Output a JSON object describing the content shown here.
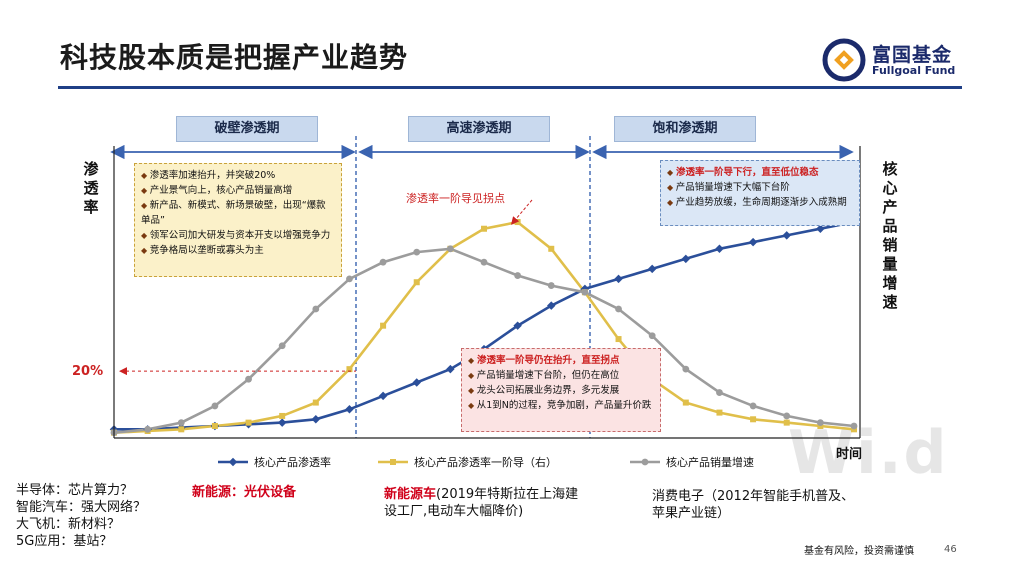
{
  "header": {
    "title": "科技股本质是把握产业趋势"
  },
  "logo": {
    "cn": "富国基金",
    "en": "Fullgoal Fund",
    "color": "#1b2a6b"
  },
  "chart_data": {
    "type": "line",
    "phases": [
      "破壁渗透期",
      "高速渗透期",
      "饱和渗透期"
    ],
    "left_axis_label": "渗透率",
    "right_axis_label": "核心产品销量增速",
    "xlabel": "时间",
    "mark_20": "20%",
    "annotation_inflection": "渗透率一阶导见拐点",
    "x": [
      0,
      1,
      2,
      3,
      4,
      5,
      6,
      7,
      8,
      9,
      10,
      11,
      12,
      13,
      14,
      15,
      16,
      17,
      18,
      19,
      20,
      21,
      22
    ],
    "series": [
      {
        "name": "核心产品渗透率",
        "color": "#2b4f9a",
        "values": [
          2,
          2,
          2.5,
          3,
          3.5,
          4,
          5,
          8,
          12,
          16,
          20,
          26,
          33,
          39,
          44,
          47,
          50,
          53,
          56,
          58,
          60,
          62,
          64
        ]
      },
      {
        "name": "核心产品渗透率一阶导（右）",
        "color": "#e0bf4a",
        "values": [
          1,
          1.5,
          2,
          3,
          4,
          6,
          10,
          20,
          33,
          46,
          56,
          62,
          64,
          56,
          43,
          29,
          17,
          10,
          7,
          5,
          4,
          3,
          2
        ]
      },
      {
        "name": "核心产品销量增速",
        "color": "#9c9c9c",
        "values": [
          1,
          2,
          4,
          9,
          17,
          27,
          38,
          47,
          52,
          55,
          56,
          52,
          48,
          45,
          43,
          38,
          30,
          20,
          13,
          9,
          6,
          4,
          3
        ]
      }
    ],
    "boxes": {
      "yellow": [
        "渗透率加速抬升，并突破20%",
        "产业景气向上，核心产品销量高增",
        "新产品、新模式、新场景破壁，出现“爆款单品”",
        "领军公司加大研发与资本开支以增强竞争力",
        "竞争格局以垄断或寡头为主"
      ],
      "red": [
        "渗透率一阶导仍在抬升，直至拐点",
        "产品销量增速下台阶，但仍在高位",
        "龙头公司拓展业务边界，多元发展",
        "从1到N的过程，竞争加剧，产品量升价跌"
      ],
      "blue": [
        "渗透率一阶导下行，直至低位稳态",
        "产品销量增速下大幅下台阶",
        "产业趋势放缓，生命周期逐渐步入成熟期"
      ]
    }
  },
  "watermark": "Wi.d",
  "notes": {
    "left": [
      "半导体：芯片算力？",
      "智能汽车：强大网络？",
      "大飞机：新材料？",
      "5G应用：基站？"
    ],
    "pv": "新能源：光伏设备",
    "ev_red": "新能源车",
    "ev_rest1": "(2019年特斯拉在上海建",
    "ev_rest2": "设工厂,电动车大幅降价)",
    "ce1": "消费电子（2012年智能手机普及、",
    "ce2": "苹果产业链）"
  },
  "footer": {
    "disclaimer": "基金有风险，投资需谨慎",
    "page": "46"
  }
}
